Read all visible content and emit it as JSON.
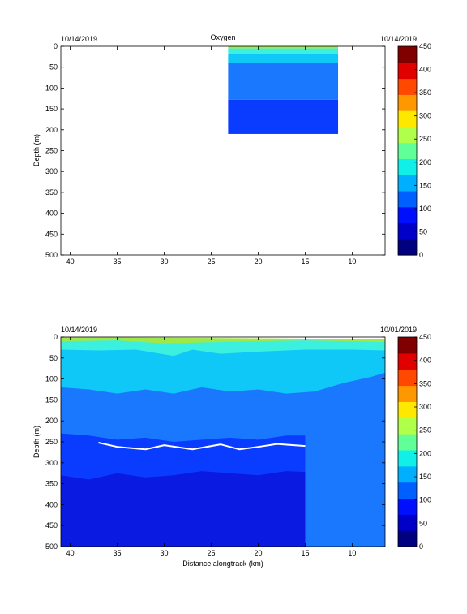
{
  "chart_data": [
    {
      "type": "heatmap",
      "title": "Oxygen",
      "date_left": "10/14/2019",
      "date_right": "10/14/2019",
      "xlabel": "",
      "ylabel": "Depth (m)",
      "xlim": [
        41,
        6.5
      ],
      "ylim": [
        0,
        500
      ],
      "x_ticks": [
        40,
        35,
        30,
        25,
        20,
        15,
        10
      ],
      "y_ticks": [
        0,
        50,
        100,
        150,
        200,
        250,
        300,
        350,
        400,
        450,
        500
      ],
      "data_extent": {
        "x": [
          23.2,
          11.5
        ],
        "depth": [
          0,
          210
        ]
      },
      "layers": [
        {
          "level": 175,
          "color": "#9fe84a",
          "depth_top": 0,
          "depth_bottom": 5
        },
        {
          "level": 150,
          "color": "#3cf0e0",
          "depth_top": 5,
          "depth_bottom": 18
        },
        {
          "level": 125,
          "color": "#10c8f8",
          "depth_top": 18,
          "depth_bottom": 40
        },
        {
          "level": 100,
          "color": "#1a78ff",
          "depth_top": 40,
          "depth_bottom": 128
        },
        {
          "level": 75,
          "color": "#0a3cff",
          "depth_top": 128,
          "depth_bottom": 210
        }
      ],
      "colorbar": {
        "min": 0,
        "max": 450,
        "ticks": [
          0,
          50,
          100,
          150,
          200,
          250,
          300,
          350,
          400,
          450
        ]
      }
    },
    {
      "type": "heatmap",
      "title": "",
      "date_left": "10/14/2019",
      "date_right": "10/01/2019",
      "xlabel": "Distance alongtrack (km)",
      "ylabel": "Depth (m)",
      "xlim": [
        41,
        6.5
      ],
      "ylim": [
        0,
        500
      ],
      "x_ticks": [
        40,
        35,
        30,
        25,
        20,
        15,
        10
      ],
      "y_ticks": [
        0,
        50,
        100,
        150,
        200,
        250,
        300,
        350,
        400,
        450,
        500
      ],
      "layers": [
        {
          "level": 175,
          "color": "#9fe84a",
          "profile": [
            [
              41,
              0
            ],
            [
              6.5,
              5
            ]
          ]
        },
        {
          "level": 150,
          "color": "#3cf0e0",
          "profile": [
            [
              41,
              10
            ],
            [
              35,
              8
            ],
            [
              30,
              15
            ],
            [
              25,
              12
            ],
            [
              20,
              10
            ],
            [
              15,
              8
            ],
            [
              10,
              10
            ],
            [
              6.5,
              12
            ]
          ]
        },
        {
          "level": 125,
          "color": "#10c8f8",
          "profile": [
            [
              41,
              30
            ],
            [
              37,
              32
            ],
            [
              33,
              30
            ],
            [
              29,
              45
            ],
            [
              27,
              30
            ],
            [
              24,
              40
            ],
            [
              20,
              35
            ],
            [
              15,
              30
            ],
            [
              10,
              30
            ],
            [
              6.5,
              32
            ]
          ]
        },
        {
          "level": 100,
          "color": "#1a78ff",
          "profile": [
            [
              41,
              120
            ],
            [
              38,
              125
            ],
            [
              35,
              135
            ],
            [
              32,
              125
            ],
            [
              29,
              135
            ],
            [
              26,
              120
            ],
            [
              23,
              130
            ],
            [
              20,
              125
            ],
            [
              17,
              135
            ],
            [
              14,
              130
            ],
            [
              11,
              110
            ],
            [
              8,
              95
            ],
            [
              6.5,
              85
            ]
          ]
        },
        {
          "level": 75,
          "color": "#0a3cff",
          "profile": [
            [
              41,
              230
            ],
            [
              38,
              235
            ],
            [
              35,
              245
            ],
            [
              32,
              240
            ],
            [
              29,
              250
            ],
            [
              26,
              245
            ],
            [
              23,
              240
            ],
            [
              20,
              245
            ],
            [
              17,
              235
            ],
            [
              15,
              235
            ]
          ]
        },
        {
          "level": 50,
          "color": "#0a1ae0",
          "profile": [
            [
              41,
              330
            ],
            [
              38,
              340
            ],
            [
              35,
              325
            ],
            [
              32,
              335
            ],
            [
              29,
              330
            ],
            [
              26,
              320
            ],
            [
              23,
              325
            ],
            [
              20,
              330
            ],
            [
              17,
              320
            ],
            [
              15,
              322
            ]
          ]
        },
        {
          "level": 25,
          "color": "#0a10b0",
          "profile": [
            [
              41,
              500
            ],
            [
              15,
              500
            ]
          ]
        }
      ],
      "annotations": [
        {
          "type": "contour_line",
          "color": "#ffffff",
          "points": [
            [
              37,
              252
            ],
            [
              35,
              262
            ],
            [
              32,
              268
            ],
            [
              30,
              258
            ],
            [
              27,
              268
            ],
            [
              24,
              256
            ],
            [
              22,
              268
            ],
            [
              20,
              262
            ],
            [
              18,
              255
            ],
            [
              15,
              260
            ]
          ]
        }
      ],
      "colorbar": {
        "min": 0,
        "max": 450,
        "ticks": [
          0,
          50,
          100,
          150,
          200,
          250,
          300,
          350,
          400,
          450
        ]
      }
    }
  ]
}
